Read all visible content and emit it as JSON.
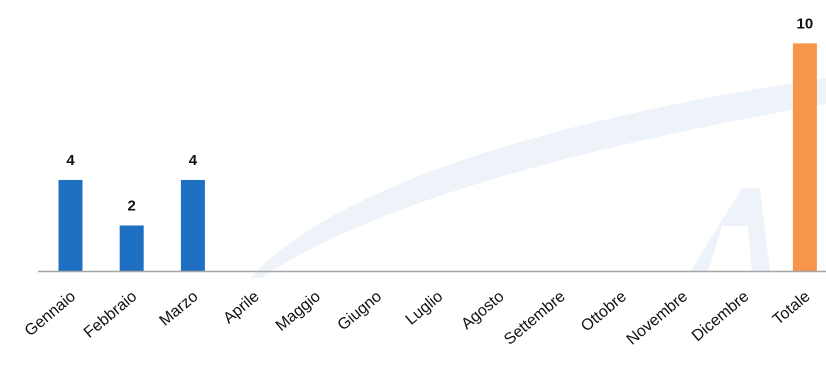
{
  "chart_data": {
    "type": "bar",
    "title": "",
    "xlabel": "",
    "ylabel": "",
    "categories": [
      "Gennaio",
      "Febbraio",
      "Marzo",
      "Aprile",
      "Maggio",
      "Giugno",
      "Luglio",
      "Agosto",
      "Settembre",
      "Ottobre",
      "Novembre",
      "Dicembre",
      "Totale"
    ],
    "values": [
      4,
      2,
      4,
      null,
      null,
      null,
      null,
      null,
      null,
      null,
      null,
      null,
      10
    ],
    "data_labels": [
      "4",
      "2",
      "4",
      "",
      "",
      "",
      "",
      "",
      "",
      "",
      "",
      "",
      "10"
    ],
    "ylim": [
      0,
      10.5
    ],
    "grid": false,
    "legend": "none",
    "colors": {
      "month_bar": "#1F6FC3",
      "total_bar": "#F7964A",
      "baseline": "#A6A6A6",
      "watermark": "#EDF3F8"
    }
  }
}
